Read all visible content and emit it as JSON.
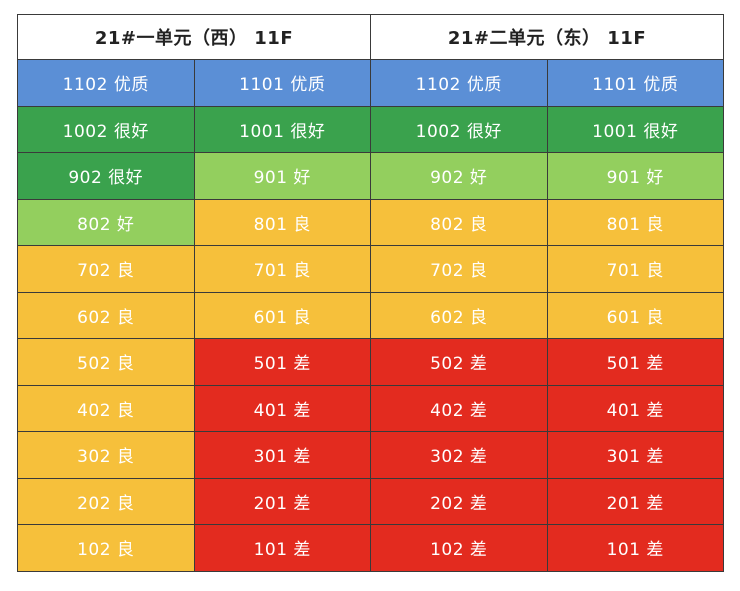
{
  "headers": [
    "21#一单元（西） 11F",
    "21#二单元（东） 11F"
  ],
  "colors": {
    "优质": "#5b8fd6",
    "很好": "#3aa24d",
    "好": "#93cf5e",
    "良": "#f6c03b",
    "差": "#e32b1f"
  },
  "rows": [
    [
      {
        "text": "1102 优质",
        "grade": "top"
      },
      {
        "text": "1101 优质",
        "grade": "top"
      },
      {
        "text": "1102 优质",
        "grade": "top"
      },
      {
        "text": "1101 优质",
        "grade": "top"
      }
    ],
    [
      {
        "text": "1002 很好",
        "grade": "vgood"
      },
      {
        "text": "1001 很好",
        "grade": "vgood"
      },
      {
        "text": "1002 很好",
        "grade": "vgood"
      },
      {
        "text": "1001 很好",
        "grade": "vgood"
      }
    ],
    [
      {
        "text": "902 很好",
        "grade": "vgood"
      },
      {
        "text": "901 好",
        "grade": "good"
      },
      {
        "text": "902 好",
        "grade": "good"
      },
      {
        "text": "901 好",
        "grade": "good"
      }
    ],
    [
      {
        "text": "802 好",
        "grade": "good"
      },
      {
        "text": "801 良",
        "grade": "ok"
      },
      {
        "text": "802 良",
        "grade": "ok"
      },
      {
        "text": "801 良",
        "grade": "ok"
      }
    ],
    [
      {
        "text": "702 良",
        "grade": "ok"
      },
      {
        "text": "701 良",
        "grade": "ok"
      },
      {
        "text": "702 良",
        "grade": "ok"
      },
      {
        "text": "701 良",
        "grade": "ok"
      }
    ],
    [
      {
        "text": "602 良",
        "grade": "ok"
      },
      {
        "text": "601 良",
        "grade": "ok"
      },
      {
        "text": "602 良",
        "grade": "ok"
      },
      {
        "text": "601 良",
        "grade": "ok"
      }
    ],
    [
      {
        "text": "502 良",
        "grade": "ok"
      },
      {
        "text": "501 差",
        "grade": "bad"
      },
      {
        "text": "502 差",
        "grade": "bad"
      },
      {
        "text": "501 差",
        "grade": "bad"
      }
    ],
    [
      {
        "text": "402 良",
        "grade": "ok"
      },
      {
        "text": "401 差",
        "grade": "bad"
      },
      {
        "text": "402 差",
        "grade": "bad"
      },
      {
        "text": "401 差",
        "grade": "bad"
      }
    ],
    [
      {
        "text": "302 良",
        "grade": "ok"
      },
      {
        "text": "301 差",
        "grade": "bad"
      },
      {
        "text": "302 差",
        "grade": "bad"
      },
      {
        "text": "301 差",
        "grade": "bad"
      }
    ],
    [
      {
        "text": "202 良",
        "grade": "ok"
      },
      {
        "text": "201 差",
        "grade": "bad"
      },
      {
        "text": "202 差",
        "grade": "bad"
      },
      {
        "text": "201 差",
        "grade": "bad"
      }
    ],
    [
      {
        "text": "102 良",
        "grade": "ok"
      },
      {
        "text": "101 差",
        "grade": "bad"
      },
      {
        "text": "102 差",
        "grade": "bad"
      },
      {
        "text": "101 差",
        "grade": "bad"
      }
    ]
  ]
}
